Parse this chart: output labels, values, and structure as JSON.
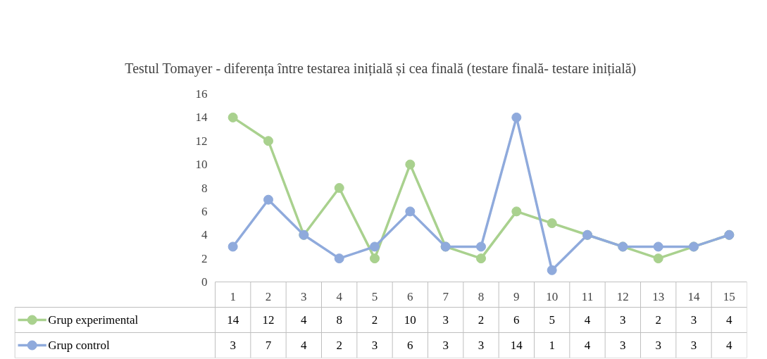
{
  "chart_data": {
    "type": "line",
    "title": "Testul Tomayer - diferența între testarea inițială și cea finală (testare finală- testare inițială)",
    "categories": [
      "1",
      "2",
      "3",
      "4",
      "5",
      "6",
      "7",
      "8",
      "9",
      "10",
      "11",
      "12",
      "13",
      "14",
      "15"
    ],
    "series": [
      {
        "name": "Grup experimental",
        "color": "#a9d18e",
        "values": [
          14,
          12,
          4,
          8,
          2,
          10,
          3,
          2,
          6,
          5,
          4,
          3,
          2,
          3,
          4
        ]
      },
      {
        "name": "Grup control",
        "color": "#8faadc",
        "values": [
          3,
          7,
          4,
          2,
          3,
          6,
          3,
          3,
          14,
          1,
          4,
          3,
          3,
          3,
          4
        ]
      }
    ],
    "ylim": [
      0,
      16
    ],
    "yticks": [
      0,
      2,
      4,
      6,
      8,
      10,
      12,
      14,
      16
    ],
    "legend": "bottom",
    "data_labels": true,
    "marker": "circle",
    "line_style": "solid"
  }
}
